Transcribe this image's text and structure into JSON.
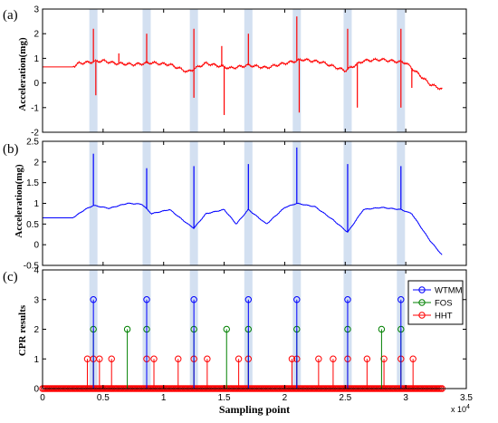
{
  "chart_data": [
    {
      "type": "line",
      "panel_label": "(a)",
      "ylabel": "Acceleration(mg)",
      "ylim": [
        -2,
        3
      ],
      "yticks": [
        "-2",
        "-1",
        "0",
        "1",
        "2",
        "3"
      ],
      "xlim": [
        0,
        3.5
      ],
      "grid": false,
      "series": [
        {
          "color": "#ff0000",
          "baseline": [
            [
              0,
              0.65
            ],
            [
              0.25,
              0.65
            ],
            [
              0.3,
              0.8
            ],
            [
              0.5,
              0.9
            ],
            [
              0.6,
              0.8
            ],
            [
              0.75,
              0.75
            ],
            [
              0.9,
              0.82
            ],
            [
              1.05,
              0.75
            ],
            [
              1.2,
              0.45
            ],
            [
              1.35,
              0.8
            ],
            [
              1.55,
              0.6
            ],
            [
              1.7,
              0.72
            ],
            [
              1.85,
              0.62
            ],
            [
              2.0,
              0.8
            ],
            [
              2.15,
              0.95
            ],
            [
              2.3,
              0.85
            ],
            [
              2.5,
              0.5
            ],
            [
              2.65,
              0.9
            ],
            [
              2.8,
              0.95
            ],
            [
              3.0,
              0.82
            ],
            [
              3.2,
              -0.05
            ],
            [
              3.3,
              -0.25
            ]
          ],
          "spikes": [
            [
              0.42,
              2.2
            ],
            [
              0.63,
              1.2
            ],
            [
              0.86,
              2.0
            ],
            [
              1.25,
              2.2
            ],
            [
              1.48,
              1.5
            ],
            [
              1.7,
              2.0
            ],
            [
              2.1,
              2.7
            ],
            [
              2.52,
              2.2
            ],
            [
              2.96,
              2.2
            ],
            [
              3.05,
              -0.2
            ],
            [
              0.44,
              -0.5
            ],
            [
              1.25,
              -0.6
            ],
            [
              1.5,
              -1.3
            ],
            [
              2.12,
              -1.2
            ],
            [
              2.6,
              -1.0
            ],
            [
              2.96,
              -1.0
            ]
          ]
        }
      ]
    },
    {
      "type": "line",
      "panel_label": "(b)",
      "ylabel": "Acceleration(mg)",
      "ylim": [
        -0.5,
        2.5
      ],
      "yticks": [
        "-0.5",
        "0",
        "0.5",
        "1",
        "1.5",
        "2",
        "2.5"
      ],
      "xlim": [
        0,
        3.5
      ],
      "grid": false,
      "series": [
        {
          "color": "#0000ff",
          "baseline": [
            [
              0,
              0.65
            ],
            [
              0.25,
              0.65
            ],
            [
              0.35,
              0.85
            ],
            [
              0.42,
              0.95
            ],
            [
              0.55,
              0.88
            ],
            [
              0.7,
              1.0
            ],
            [
              0.82,
              0.98
            ],
            [
              0.9,
              0.75
            ],
            [
              1.05,
              0.85
            ],
            [
              1.2,
              0.5
            ],
            [
              1.25,
              0.4
            ],
            [
              1.35,
              0.75
            ],
            [
              1.5,
              0.85
            ],
            [
              1.6,
              0.5
            ],
            [
              1.7,
              0.85
            ],
            [
              1.85,
              0.5
            ],
            [
              2.0,
              0.9
            ],
            [
              2.1,
              1.0
            ],
            [
              2.25,
              0.92
            ],
            [
              2.4,
              0.6
            ],
            [
              2.52,
              0.3
            ],
            [
              2.65,
              0.85
            ],
            [
              2.8,
              0.9
            ],
            [
              2.96,
              0.85
            ],
            [
              3.05,
              0.75
            ],
            [
              3.2,
              0.1
            ],
            [
              3.3,
              -0.25
            ]
          ],
          "spikes": [
            [
              0.42,
              2.2
            ],
            [
              0.86,
              1.85
            ],
            [
              1.25,
              1.9
            ],
            [
              1.7,
              1.95
            ],
            [
              2.1,
              2.35
            ],
            [
              2.52,
              1.95
            ],
            [
              2.96,
              1.9
            ]
          ]
        }
      ]
    },
    {
      "type": "scatter",
      "panel_label": "(c)",
      "ylabel": "CPR results",
      "xlabel": "Sampling point",
      "x_multiplier": "x 10",
      "x_exponent": "4",
      "ylim": [
        0,
        4
      ],
      "yticks": [
        "0",
        "1",
        "2",
        "3",
        "4"
      ],
      "xlim": [
        0,
        3.5
      ],
      "xticks": [
        "0",
        "0.5",
        "1",
        "1.5",
        "2",
        "2.5",
        "3",
        "3.5"
      ],
      "legend_position": "top-right",
      "series": [
        {
          "name": "WTMM",
          "color": "#0000ff",
          "x": [
            0.42,
            0.86,
            1.25,
            1.7,
            2.1,
            2.52,
            2.96
          ],
          "y": [
            3,
            3,
            3,
            3,
            3,
            3,
            3
          ]
        },
        {
          "name": "FOS",
          "color": "#008000",
          "x": [
            0.42,
            0.7,
            0.86,
            1.25,
            1.52,
            1.7,
            2.1,
            2.52,
            2.8,
            2.96
          ],
          "y": [
            2,
            2,
            2,
            2,
            2,
            2,
            2,
            2,
            2,
            2
          ]
        },
        {
          "name": "HHT",
          "color": "#ff0000",
          "x": [
            0.37,
            0.42,
            0.47,
            0.57,
            0.86,
            0.92,
            1.12,
            1.25,
            1.36,
            1.62,
            1.7,
            2.06,
            2.1,
            2.28,
            2.4,
            2.52,
            2.68,
            2.82,
            2.96,
            3.06
          ],
          "y": [
            1,
            1,
            1,
            1,
            1,
            1,
            1,
            1,
            1,
            1,
            1,
            1,
            1,
            1,
            1,
            1,
            1,
            1,
            1,
            1
          ]
        }
      ],
      "zero_markers_color": "#ff0000",
      "zero_xrange": [
        0,
        3.3
      ]
    }
  ],
  "highlight_bands": {
    "color": "#c8d8ee",
    "x": [
      0.42,
      0.86,
      1.25,
      1.7,
      2.1,
      2.52,
      2.96
    ]
  }
}
